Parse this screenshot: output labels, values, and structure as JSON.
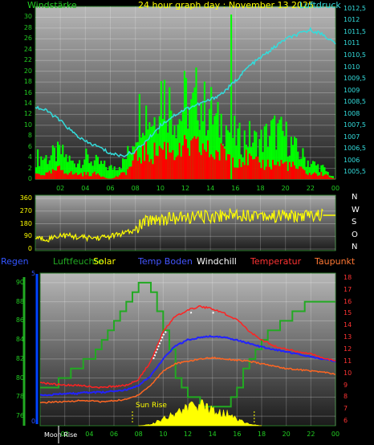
{
  "header": {
    "title": "24 hour graph day : November 13 2025",
    "left_label": "Windstärke",
    "right_label": "Luftdruck"
  },
  "colors": {
    "wind_max": "#00ff00",
    "wind_avg": "#ff0000",
    "pressure": "#33dddd",
    "wind_dir": "#ffff00",
    "rain": "#0044ff",
    "humidity": "#22aa22",
    "solar": "#ffff00",
    "temp": "#ff2222",
    "dewpoint": "#ff6622",
    "temp_ground": "#2222ff",
    "windchill": "#ffffff"
  },
  "chart_data": [
    {
      "type": "bar",
      "name": "wind_pressure",
      "y_ticks_left": [
        "0",
        "2",
        "4",
        "6",
        "8",
        "10",
        "12",
        "14",
        "16",
        "18",
        "20",
        "22",
        "24",
        "26",
        "28",
        "30"
      ],
      "y_ticks_right": [
        "1005,5",
        "1006",
        "1006,5",
        "1007",
        "1007,5",
        "1008",
        "1008,5",
        "1009",
        "1009,5",
        "1010",
        "1010,5",
        "1011",
        "1011,5",
        "1012",
        "1012,5"
      ],
      "x_ticks": [
        "02",
        "04",
        "06",
        "08",
        "10",
        "12",
        "14",
        "16",
        "18",
        "20",
        "22",
        "00"
      ],
      "xlim": [
        0,
        24
      ],
      "ylim_left": [
        0,
        32
      ],
      "ylim_right": [
        1005.2,
        1012.6
      ],
      "grid": true,
      "series": [
        {
          "x": [
            0,
            1,
            2,
            3,
            4,
            5,
            6,
            7,
            7.5,
            8,
            8.5,
            9,
            9.5,
            10,
            10.5,
            11,
            11.5,
            12,
            12.5,
            13,
            13.5,
            14,
            14.5,
            15,
            15.5,
            16,
            16.5,
            17,
            17.5,
            18,
            19,
            20,
            21,
            22,
            23,
            24
          ],
          "values": [
            4,
            4,
            5,
            3,
            4,
            3,
            2,
            3,
            5,
            9,
            14,
            12,
            11,
            17,
            15,
            13,
            11,
            15,
            12,
            16,
            13,
            13,
            10,
            11,
            9,
            8,
            7,
            8,
            7,
            7,
            9,
            8,
            5,
            3,
            2,
            0
          ]
        },
        {
          "x": [
            0,
            1,
            2,
            3,
            4,
            5,
            6,
            7,
            7.5,
            8,
            8.5,
            9,
            9.5,
            10,
            10.5,
            11,
            11.5,
            12,
            12.5,
            13,
            13.5,
            14,
            14.5,
            15,
            15.5,
            16,
            16.5,
            17,
            17.5,
            18,
            19,
            20,
            21,
            22,
            23,
            24
          ],
          "values": [
            1,
            1,
            2,
            1,
            1,
            1,
            0,
            1,
            2,
            4,
            5,
            5,
            5,
            6,
            6,
            6,
            5,
            6,
            6,
            6,
            6,
            5,
            5,
            5,
            5,
            4,
            4,
            4,
            3,
            3,
            3,
            3,
            2,
            1,
            1,
            0
          ]
        },
        {
          "x": [
            0,
            1,
            2,
            3,
            4,
            5,
            6,
            7,
            8,
            9,
            10,
            11,
            12,
            13,
            14,
            15,
            16,
            17,
            18,
            19,
            20,
            21,
            22,
            23,
            24
          ],
          "values": [
            1008.3,
            1008.1,
            1007.7,
            1007.2,
            1006.8,
            1006.6,
            1006.3,
            1006.2,
            1006.4,
            1006.9,
            1007.5,
            1007.9,
            1008.2,
            1008.4,
            1008.6,
            1008.9,
            1009.4,
            1010.0,
            1010.4,
            1010.8,
            1011.2,
            1011.4,
            1011.6,
            1011.4,
            1011.0
          ]
        }
      ]
    },
    {
      "type": "line",
      "name": "wind_direction",
      "y_ticks": [
        "0",
        "90",
        "180",
        "270",
        "360"
      ],
      "ylim": [
        0,
        360
      ],
      "xlim": [
        0,
        24
      ],
      "compass": [
        "N",
        "W",
        "S",
        "O",
        "N"
      ],
      "grid": true,
      "series": [
        {
          "x": [
            0,
            1,
            2,
            3,
            4,
            5,
            6,
            7,
            8,
            8.5,
            9,
            9.5,
            10,
            11,
            12,
            13,
            14,
            15,
            16,
            17,
            18,
            19,
            20,
            21,
            22,
            23,
            24
          ],
          "values": [
            80,
            70,
            100,
            90,
            80,
            80,
            90,
            110,
            130,
            180,
            200,
            220,
            210,
            220,
            220,
            230,
            230,
            240,
            250,
            240,
            250,
            230,
            240,
            230,
            240,
            240,
            240
          ]
        }
      ]
    },
    {
      "type": "line",
      "name": "climate",
      "legend": [
        "Regen",
        "Luftfeuchte",
        "Solar",
        "Temp Boden",
        "Windchill",
        "Temperatur",
        "Taupunkt"
      ],
      "y_ticks_left": [
        "76",
        "78",
        "80",
        "82",
        "84",
        "86",
        "88",
        "90"
      ],
      "y_ticks_right": [
        "6",
        "7",
        "8",
        "9",
        "10",
        "11",
        "12",
        "13",
        "14",
        "15",
        "16",
        "17",
        "18"
      ],
      "y_ticks_rain": [
        "0",
        "5"
      ],
      "x_ticks": [
        "02",
        "04",
        "06",
        "08",
        "10",
        "12",
        "14",
        "16",
        "18",
        "20",
        "22",
        "00"
      ],
      "xlim": [
        0,
        24
      ],
      "ylim_left": [
        75,
        91
      ],
      "ylim_right": [
        5.6,
        18.4
      ],
      "grid": true,
      "annotations": [
        "Sun Rise",
        "Moon Rise"
      ],
      "series": [
        {
          "x": [
            0,
            1,
            2,
            3,
            4,
            5,
            6,
            7,
            8,
            9,
            10,
            11,
            12,
            13,
            14,
            15,
            16,
            17,
            18,
            19,
            20,
            21,
            22,
            23,
            24
          ],
          "values": [
            9.2,
            9.1,
            9.0,
            9.0,
            8.9,
            8.8,
            8.9,
            9.0,
            9.5,
            11.0,
            13.5,
            14.8,
            15.3,
            15.6,
            15.4,
            15.0,
            14.5,
            13.5,
            12.8,
            12.3,
            12.0,
            11.8,
            11.6,
            11.3,
            11.0
          ]
        },
        {
          "x": [
            0,
            1,
            2,
            3,
            4,
            5,
            6,
            7,
            8,
            9,
            10,
            11,
            12,
            13,
            14,
            15,
            16,
            17,
            18,
            19,
            20,
            21,
            22,
            23,
            24
          ],
          "values": [
            7.5,
            7.6,
            7.6,
            7.7,
            7.7,
            7.6,
            7.7,
            7.8,
            8.2,
            9.0,
            10.2,
            10.8,
            11.0,
            11.2,
            11.3,
            11.2,
            11.1,
            11.0,
            10.8,
            10.6,
            10.4,
            10.3,
            10.2,
            10.1,
            9.9
          ]
        },
        {
          "x": [
            0,
            1,
            2,
            3,
            4,
            5,
            6,
            7,
            8,
            9,
            10,
            11,
            12,
            13,
            14,
            15,
            16,
            17,
            18,
            19,
            20,
            21,
            22,
            23,
            24
          ],
          "values": [
            8.2,
            8.2,
            8.3,
            8.3,
            8.4,
            8.4,
            8.5,
            8.6,
            9.0,
            9.8,
            11.2,
            12.3,
            12.8,
            13.0,
            13.1,
            13.0,
            12.8,
            12.5,
            12.2,
            12.0,
            11.8,
            11.6,
            11.4,
            11.2,
            11.0
          ]
        },
        {
          "x": [
            0,
            1,
            2,
            3,
            4,
            5,
            6,
            7,
            8,
            9,
            10,
            11,
            12,
            13,
            14,
            15,
            16,
            17,
            18,
            19,
            20,
            21,
            22,
            23,
            24
          ],
          "values": [
            79,
            79,
            80,
            81,
            82,
            84,
            86,
            88,
            90,
            89,
            85,
            80,
            78,
            77,
            77,
            77,
            79,
            82,
            84,
            85,
            86,
            87,
            88,
            88,
            88
          ]
        },
        {
          "x": [
            8,
            9,
            10,
            11,
            12,
            13,
            14,
            15,
            16,
            17,
            18
          ],
          "values": [
            0,
            0.1,
            0.5,
            0.9,
            1.2,
            1.4,
            1.2,
            0.9,
            0.5,
            0.1,
            0
          ]
        }
      ]
    }
  ]
}
